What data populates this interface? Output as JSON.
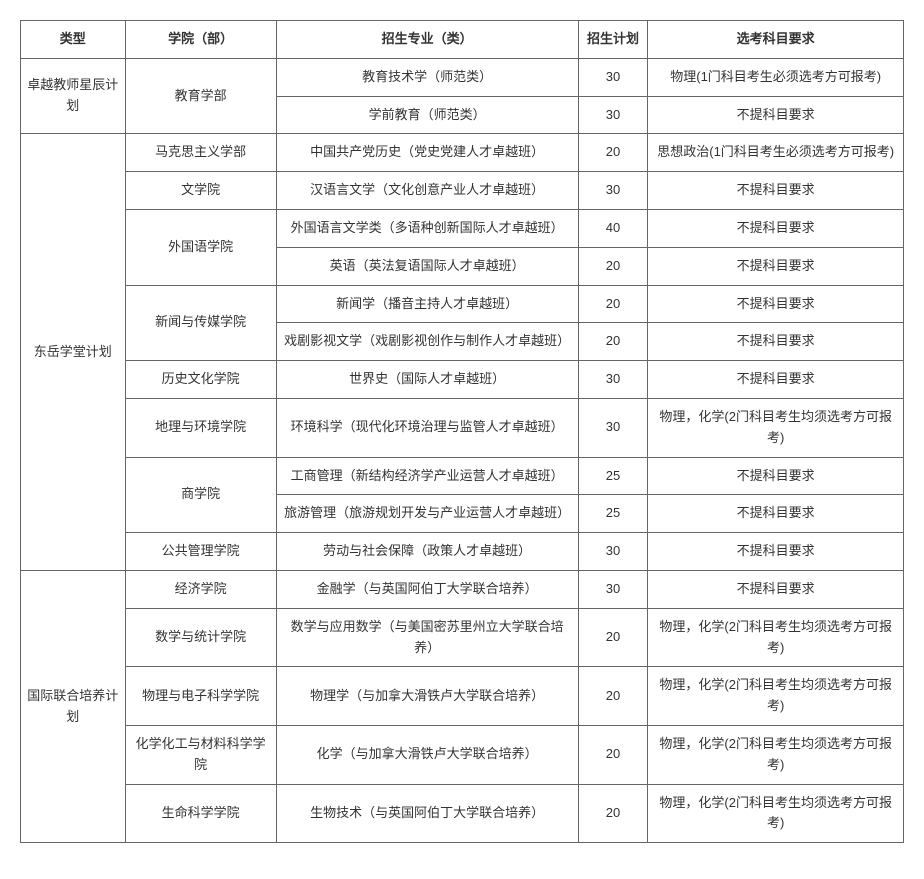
{
  "headers": {
    "type": "类型",
    "college": "学院（部）",
    "major": "招生专业（类）",
    "plan": "招生计划",
    "requirement": "选考科目要求"
  },
  "groups": [
    {
      "type": "卓越教师星辰计划",
      "rows": [
        {
          "college": "教育学部",
          "collegeRowspan": 2,
          "major": "教育技术学（师范类）",
          "plan": "30",
          "requirement": "物理(1门科目考生必须选考方可报考)"
        },
        {
          "major": "学前教育（师范类）",
          "plan": "30",
          "requirement": "不提科目要求"
        }
      ]
    },
    {
      "type": "东岳学堂计划",
      "rows": [
        {
          "college": "马克思主义学部",
          "collegeRowspan": 1,
          "major": "中国共产党历史（党史党建人才卓越班）",
          "plan": "20",
          "requirement": "思想政治(1门科目考生必须选考方可报考)"
        },
        {
          "college": "文学院",
          "collegeRowspan": 1,
          "major": "汉语言文学（文化创意产业人才卓越班）",
          "plan": "30",
          "requirement": "不提科目要求"
        },
        {
          "college": "外国语学院",
          "collegeRowspan": 2,
          "major": "外国语言文学类（多语种创新国际人才卓越班）",
          "plan": "40",
          "requirement": "不提科目要求"
        },
        {
          "major": "英语（英法复语国际人才卓越班）",
          "plan": "20",
          "requirement": "不提科目要求"
        },
        {
          "college": "新闻与传媒学院",
          "collegeRowspan": 2,
          "major": "新闻学（播音主持人才卓越班）",
          "plan": "20",
          "requirement": "不提科目要求"
        },
        {
          "major": "戏剧影视文学（戏剧影视创作与制作人才卓越班）",
          "plan": "20",
          "requirement": "不提科目要求"
        },
        {
          "college": "历史文化学院",
          "collegeRowspan": 1,
          "major": "世界史（国际人才卓越班）",
          "plan": "30",
          "requirement": "不提科目要求"
        },
        {
          "college": "地理与环境学院",
          "collegeRowspan": 1,
          "major": "环境科学（现代化环境治理与监管人才卓越班）",
          "plan": "30",
          "requirement": "物理，化学(2门科目考生均须选考方可报考)"
        },
        {
          "college": "商学院",
          "collegeRowspan": 2,
          "major": "工商管理（新结构经济学产业运营人才卓越班）",
          "plan": "25",
          "requirement": "不提科目要求"
        },
        {
          "major": "旅游管理（旅游规划开发与产业运营人才卓越班）",
          "plan": "25",
          "requirement": "不提科目要求"
        },
        {
          "college": "公共管理学院",
          "collegeRowspan": 1,
          "major": "劳动与社会保障（政策人才卓越班）",
          "plan": "30",
          "requirement": "不提科目要求"
        }
      ]
    },
    {
      "type": "国际联合培养计划",
      "rows": [
        {
          "college": "经济学院",
          "collegeRowspan": 1,
          "major": "金融学（与英国阿伯丁大学联合培养）",
          "plan": "30",
          "requirement": "不提科目要求"
        },
        {
          "college": "数学与统计学院",
          "collegeRowspan": 1,
          "major": "数学与应用数学（与美国密苏里州立大学联合培养）",
          "plan": "20",
          "requirement": "物理，化学(2门科目考生均须选考方可报考)"
        },
        {
          "college": "物理与电子科学学院",
          "collegeRowspan": 1,
          "major": "物理学（与加拿大滑铁卢大学联合培养）",
          "plan": "20",
          "requirement": "物理，化学(2门科目考生均须选考方可报考)"
        },
        {
          "college": "化学化工与材料科学学院",
          "collegeRowspan": 1,
          "major": "化学（与加拿大滑铁卢大学联合培养）",
          "plan": "20",
          "requirement": "物理，化学(2门科目考生均须选考方可报考)"
        },
        {
          "college": "生命科学学院",
          "collegeRowspan": 1,
          "major": "生物技术（与英国阿伯丁大学联合培养）",
          "plan": "20",
          "requirement": "物理，化学(2门科目考生均须选考方可报考)"
        }
      ]
    }
  ]
}
